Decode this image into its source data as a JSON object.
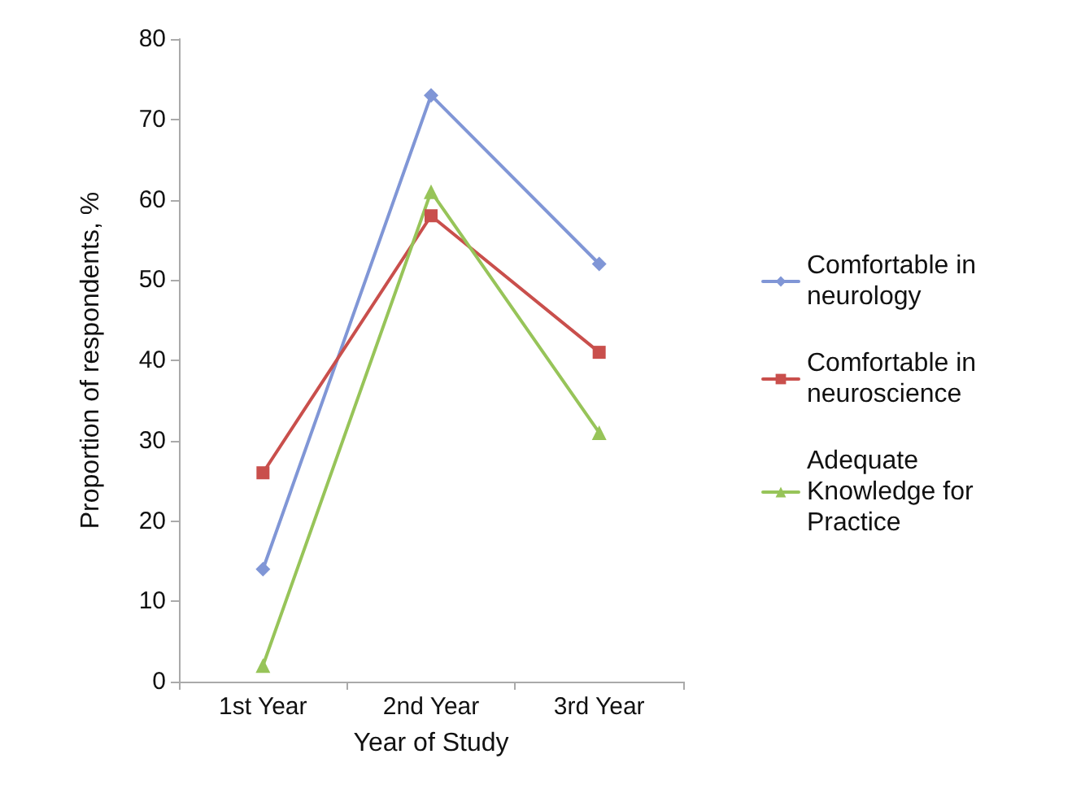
{
  "chart_data": {
    "type": "line",
    "xlabel": "Year of Study",
    "ylabel": "Proportion of respondents, %",
    "categories": [
      "1st Year",
      "2nd Year",
      "3rd Year"
    ],
    "series": [
      {
        "name": "Comfortable in neurology",
        "color": "#8096d6",
        "marker": "diamond",
        "values": [
          14,
          73,
          52
        ]
      },
      {
        "name": "Comfortable in neuroscience",
        "color": "#c94f4c",
        "marker": "square",
        "values": [
          26,
          58,
          41
        ]
      },
      {
        "name": "Adequate Knowledge for Practice",
        "color": "#97c459",
        "marker": "triangle",
        "values": [
          2,
          61,
          31
        ]
      }
    ],
    "ylim": [
      0,
      80
    ],
    "yticks": [
      0,
      10,
      20,
      30,
      40,
      50,
      60,
      70,
      80
    ],
    "grid": false,
    "legend": "right"
  }
}
